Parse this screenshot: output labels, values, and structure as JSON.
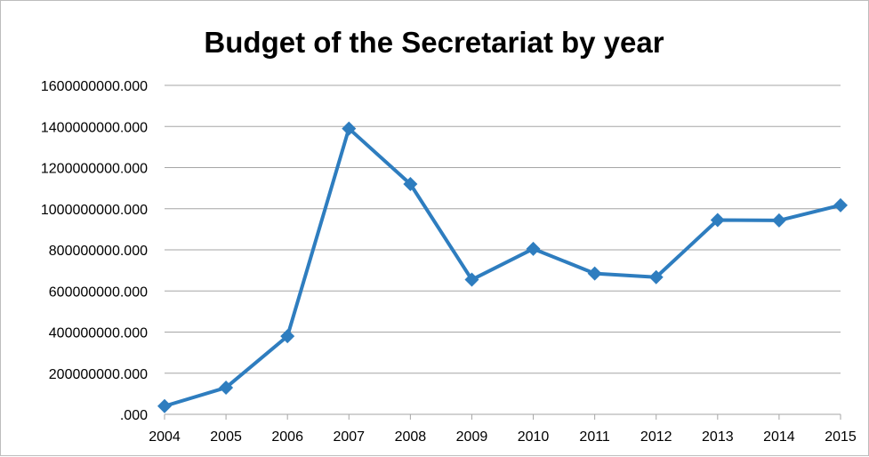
{
  "chart_data": {
    "type": "line",
    "title": "Budget of the Secretariat by year",
    "xlabel": "",
    "ylabel": "",
    "categories": [
      "2004",
      "2005",
      "2006",
      "2007",
      "2008",
      "2009",
      "2010",
      "2011",
      "2012",
      "2013",
      "2014",
      "2015"
    ],
    "series": [
      {
        "values": [
          40000000,
          130000000,
          380000000,
          1390000000,
          1120000000,
          655000000,
          805000000,
          685000000,
          667000000,
          945000000,
          943000000,
          1017000000
        ],
        "color": "#2e7dbf",
        "marker": "diamond"
      }
    ],
    "yticks": [
      ".000",
      "200000000.000",
      "400000000.000",
      "600000000.000",
      "800000000.000",
      "1000000000.000",
      "1200000000.000",
      "1400000000.000",
      "1600000000.000"
    ],
    "ylim": [
      0,
      1600000000
    ],
    "grid": true,
    "legend": "none"
  }
}
